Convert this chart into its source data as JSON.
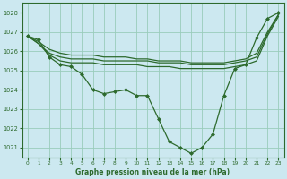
{
  "xlabel": "Graphe pression niveau de la mer (hPa)",
  "background_color": "#cce8f0",
  "grid_color": "#99ccbb",
  "line_color": "#2d6a2d",
  "marker_color": "#2d6a2d",
  "ylim": [
    1020.5,
    1028.5
  ],
  "xlim": [
    -0.5,
    23.5
  ],
  "yticks": [
    1021,
    1022,
    1023,
    1024,
    1025,
    1026,
    1027,
    1028
  ],
  "xticks": [
    0,
    1,
    2,
    3,
    4,
    5,
    6,
    7,
    8,
    9,
    10,
    11,
    12,
    13,
    14,
    15,
    16,
    17,
    18,
    19,
    20,
    21,
    22,
    23
  ],
  "series": [
    [
      1026.8,
      1026.6,
      1025.7,
      1025.3,
      1025.2,
      1024.8,
      1024.0,
      1023.8,
      1023.9,
      1024.0,
      1023.7,
      1023.7,
      1022.5,
      1021.3,
      1021.0,
      1020.7,
      1021.0,
      1021.7,
      1023.7,
      1025.1,
      1025.3,
      1026.7,
      1027.7,
      1028.0
    ],
    [
      1026.8,
      1026.4,
      1025.8,
      1025.5,
      1025.4,
      1025.4,
      1025.4,
      1025.3,
      1025.3,
      1025.3,
      1025.3,
      1025.2,
      1025.2,
      1025.2,
      1025.1,
      1025.1,
      1025.1,
      1025.1,
      1025.1,
      1025.2,
      1025.3,
      1025.5,
      1026.8,
      1027.8
    ],
    [
      1026.8,
      1026.4,
      1025.9,
      1025.7,
      1025.6,
      1025.6,
      1025.6,
      1025.5,
      1025.5,
      1025.5,
      1025.5,
      1025.5,
      1025.4,
      1025.4,
      1025.4,
      1025.3,
      1025.3,
      1025.3,
      1025.3,
      1025.4,
      1025.5,
      1025.7,
      1026.9,
      1027.9
    ],
    [
      1026.8,
      1026.5,
      1026.1,
      1025.9,
      1025.8,
      1025.8,
      1025.8,
      1025.7,
      1025.7,
      1025.7,
      1025.6,
      1025.6,
      1025.5,
      1025.5,
      1025.5,
      1025.4,
      1025.4,
      1025.4,
      1025.4,
      1025.5,
      1025.6,
      1025.9,
      1027.0,
      1027.9
    ]
  ],
  "series_markers": [
    true,
    false,
    false,
    false
  ]
}
